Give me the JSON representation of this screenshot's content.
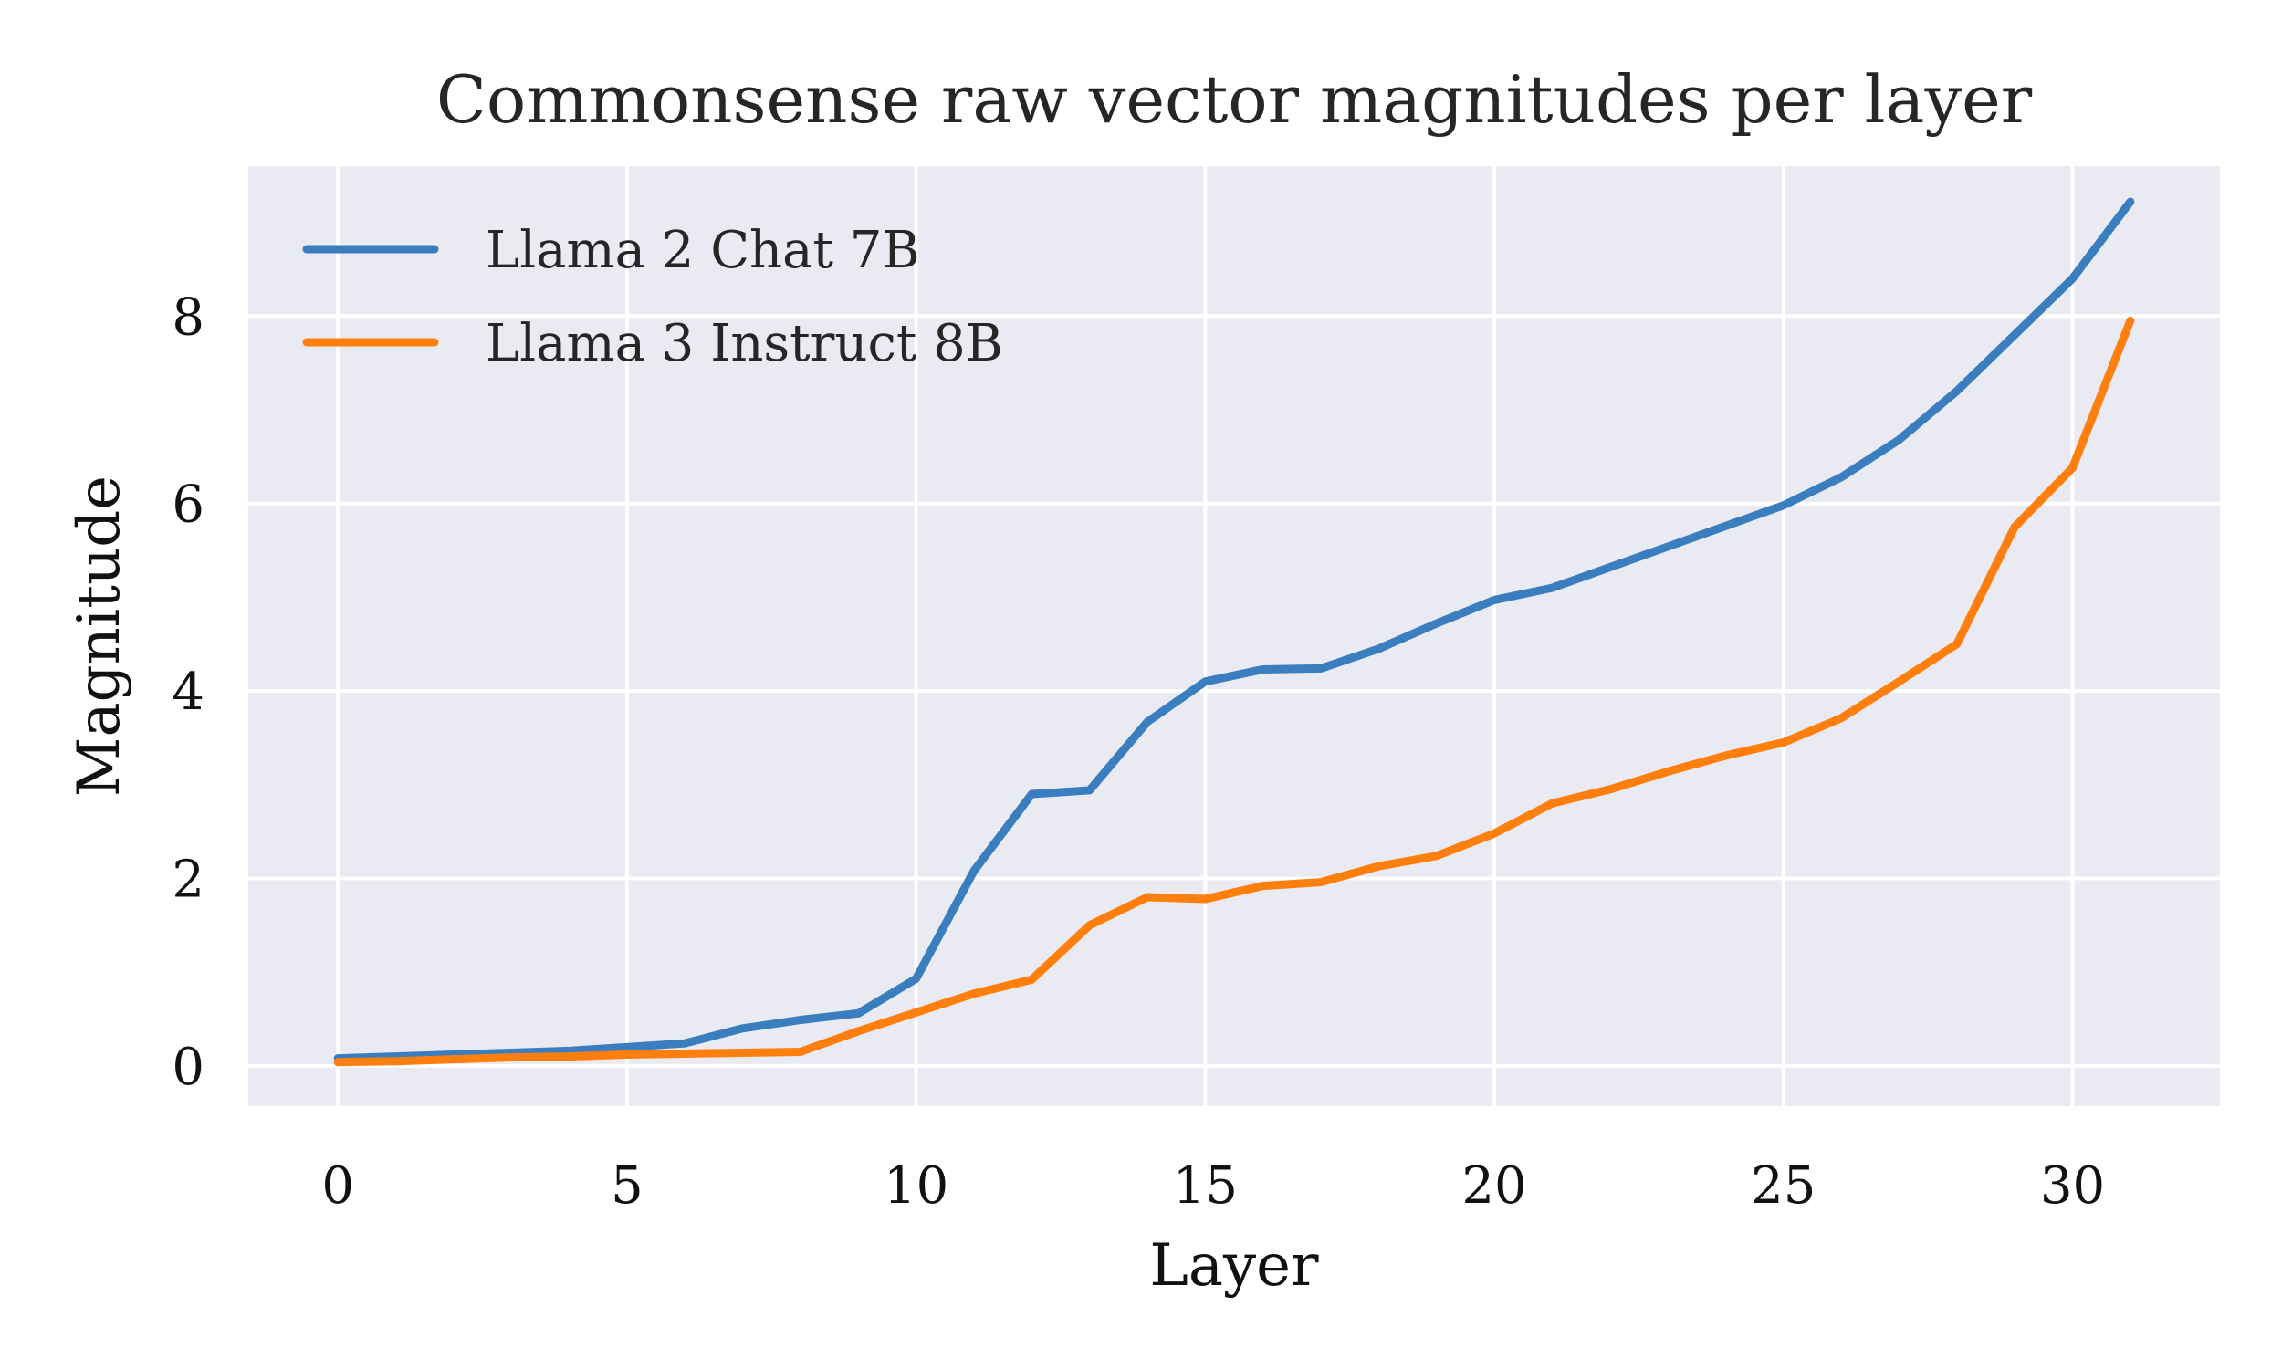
{
  "chart_data": {
    "type": "line",
    "title": "Commonsense raw vector magnitudes per layer",
    "xlabel": "Layer",
    "ylabel": "Magnitude",
    "xlim": [
      -1.55,
      32.55
    ],
    "ylim": [
      -0.43,
      9.6
    ],
    "xticks": [
      0,
      5,
      10,
      15,
      20,
      25,
      30
    ],
    "yticks": [
      0,
      2,
      4,
      6,
      8
    ],
    "grid": true,
    "legend_position": "top-left",
    "background_color": "#eaeaf2",
    "x": [
      0,
      1,
      2,
      3,
      4,
      5,
      6,
      7,
      8,
      9,
      10,
      11,
      12,
      13,
      14,
      15,
      16,
      17,
      18,
      19,
      20,
      21,
      22,
      23,
      24,
      25,
      26,
      27,
      28,
      29,
      30,
      31
    ],
    "series": [
      {
        "name": "Llama 2 Chat 7B",
        "color": "#3a7ebf",
        "values": [
          0.08,
          0.1,
          0.12,
          0.14,
          0.16,
          0.2,
          0.24,
          0.4,
          0.49,
          0.56,
          0.93,
          2.08,
          2.9,
          2.94,
          3.67,
          4.1,
          4.23,
          4.24,
          4.45,
          4.72,
          4.97,
          5.1,
          5.32,
          5.54,
          5.76,
          5.98,
          6.28,
          6.68,
          7.2,
          7.8,
          8.4,
          9.22
        ]
      },
      {
        "name": "Llama 3 Instruct 8B",
        "color": "#ff7f0e",
        "values": [
          0.04,
          0.05,
          0.07,
          0.09,
          0.1,
          0.12,
          0.13,
          0.14,
          0.15,
          0.37,
          0.57,
          0.77,
          0.92,
          1.5,
          1.8,
          1.78,
          1.92,
          1.96,
          2.13,
          2.24,
          2.48,
          2.8,
          2.95,
          3.14,
          3.31,
          3.45,
          3.71,
          4.1,
          4.5,
          5.75,
          6.38,
          7.95
        ]
      }
    ]
  }
}
